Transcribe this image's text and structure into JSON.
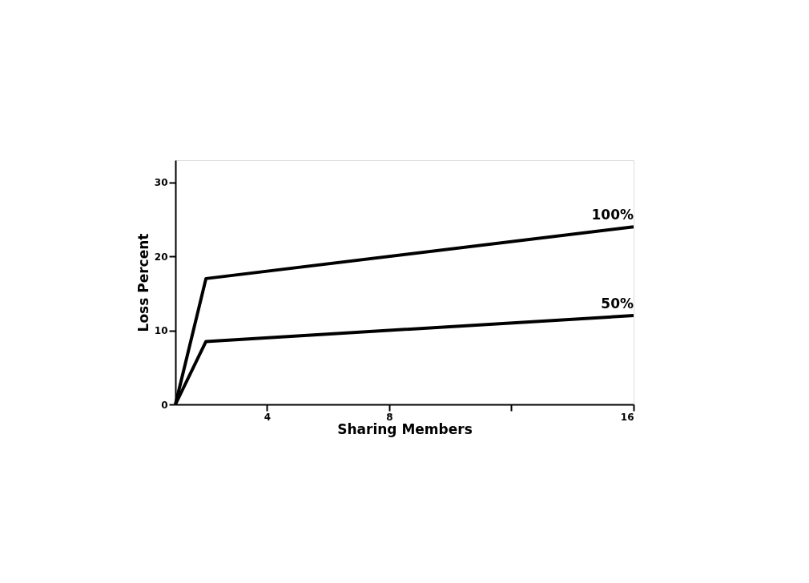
{
  "chart_data": {
    "type": "line",
    "xlabel": "Sharing Members",
    "ylabel": "Loss Percent",
    "x": [
      1,
      2,
      16
    ],
    "series": [
      {
        "name": "100%",
        "color": "#000000",
        "values": [
          0,
          17,
          24
        ]
      },
      {
        "name": "50%",
        "color": "#000000",
        "values": [
          0,
          8.5,
          12
        ]
      }
    ],
    "xlim": [
      1,
      16
    ],
    "xticks": [
      4,
      8,
      {
        "value": 12,
        "label": null
      },
      16
    ],
    "ylim": [
      0,
      33
    ],
    "yticks": [
      0,
      10,
      20,
      30
    ],
    "marker": "none",
    "line_style": "solid"
  }
}
